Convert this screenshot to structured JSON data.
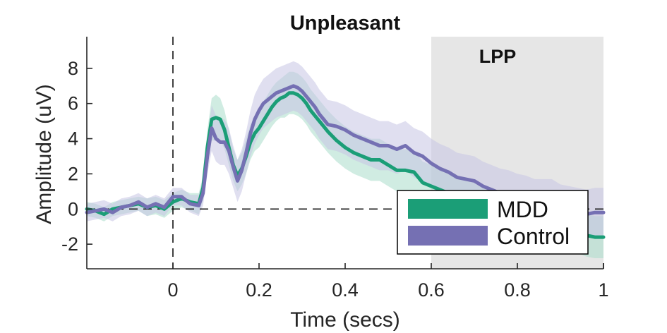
{
  "chart_data": {
    "type": "line",
    "title": "Unpleasant",
    "xlabel": "Time (secs)",
    "ylabel": "Amplitude (uV)",
    "xlim": [
      -0.2,
      1.0
    ],
    "ylim": [
      -3.4,
      9.8
    ],
    "xticks": [
      0,
      0.2,
      0.4,
      0.6,
      0.8,
      1
    ],
    "xtick_labels": [
      "0",
      "0.2",
      "0.4",
      "0.6",
      "0.8",
      "1"
    ],
    "yticks": [
      -2,
      0,
      2,
      4,
      6,
      8
    ],
    "ytick_labels": [
      "-2",
      "0",
      "2",
      "4",
      "6",
      "8"
    ],
    "grid": false,
    "legend_position": "bottom-right",
    "reference_lines": {
      "vertical_x": 0,
      "horizontal_y": 0,
      "style": "dashed"
    },
    "shaded_region": {
      "label": "LPP",
      "x_start": 0.6,
      "x_end": 1.0,
      "color": "#e6e6e6"
    },
    "x": [
      -0.2,
      -0.18,
      -0.16,
      -0.14,
      -0.12,
      -0.1,
      -0.08,
      -0.06,
      -0.04,
      -0.02,
      0.0,
      0.02,
      0.04,
      0.06,
      0.07,
      0.08,
      0.09,
      0.1,
      0.11,
      0.12,
      0.13,
      0.14,
      0.15,
      0.16,
      0.17,
      0.18,
      0.19,
      0.2,
      0.21,
      0.22,
      0.23,
      0.24,
      0.25,
      0.26,
      0.27,
      0.28,
      0.29,
      0.3,
      0.31,
      0.32,
      0.33,
      0.34,
      0.35,
      0.36,
      0.38,
      0.4,
      0.42,
      0.44,
      0.46,
      0.48,
      0.5,
      0.52,
      0.54,
      0.56,
      0.58,
      0.6,
      0.62,
      0.64,
      0.66,
      0.68,
      0.7,
      0.72,
      0.74,
      0.76,
      0.78,
      0.8,
      0.82,
      0.84,
      0.86,
      0.88,
      0.9,
      0.92,
      0.94,
      0.96,
      0.98,
      1.0
    ],
    "series": [
      {
        "name": "MDD",
        "color": "#1b9e77",
        "values": [
          0.0,
          -0.1,
          -0.3,
          0.0,
          0.1,
          0.2,
          0.3,
          0.1,
          0.2,
          0.0,
          0.4,
          0.6,
          0.4,
          0.3,
          1.2,
          3.5,
          5.1,
          5.2,
          5.1,
          4.5,
          3.5,
          2.5,
          1.9,
          2.3,
          3.0,
          3.8,
          4.3,
          4.6,
          5.0,
          5.4,
          5.8,
          6.1,
          6.3,
          6.4,
          6.6,
          6.6,
          6.5,
          6.3,
          6.0,
          5.6,
          5.3,
          5.0,
          4.7,
          4.4,
          3.9,
          3.5,
          3.2,
          3.0,
          2.8,
          2.8,
          2.5,
          2.2,
          2.2,
          2.1,
          1.5,
          1.3,
          1.1,
          0.9,
          0.7,
          0.5,
          0.3,
          0.1,
          -0.1,
          -0.3,
          -0.5,
          -0.4,
          -0.6,
          -0.5,
          -0.7,
          -0.8,
          -1.0,
          -1.2,
          -1.3,
          -1.5,
          -1.6,
          -1.6
        ],
        "ci_upper": [
          0.4,
          0.3,
          0.1,
          0.4,
          0.5,
          0.6,
          0.7,
          0.6,
          0.7,
          0.5,
          0.9,
          1.1,
          0.9,
          0.9,
          1.9,
          4.5,
          6.3,
          6.5,
          6.3,
          5.6,
          4.5,
          3.4,
          2.8,
          3.2,
          4.0,
          4.8,
          5.3,
          5.7,
          6.1,
          6.5,
          6.9,
          7.2,
          7.4,
          7.6,
          7.8,
          7.8,
          7.7,
          7.5,
          7.2,
          6.8,
          6.5,
          6.2,
          5.9,
          5.6,
          5.1,
          4.7,
          4.4,
          4.2,
          4.0,
          4.0,
          3.7,
          3.4,
          3.4,
          3.3,
          2.7,
          2.5,
          2.3,
          2.1,
          1.9,
          1.7,
          1.5,
          1.3,
          1.1,
          0.9,
          0.7,
          0.8,
          0.6,
          0.7,
          0.5,
          0.4,
          0.2,
          0.0,
          -0.1,
          -0.3,
          -0.4,
          -0.4
        ],
        "ci_lower": [
          -0.4,
          -0.5,
          -0.7,
          -0.4,
          -0.3,
          -0.2,
          -0.1,
          -0.4,
          -0.3,
          -0.5,
          -0.1,
          0.1,
          -0.1,
          -0.3,
          0.5,
          2.5,
          3.9,
          3.9,
          3.9,
          3.4,
          2.5,
          1.6,
          1.0,
          1.4,
          2.0,
          2.8,
          3.3,
          3.5,
          3.9,
          4.3,
          4.7,
          5.0,
          5.2,
          5.2,
          5.4,
          5.4,
          5.3,
          5.1,
          4.8,
          4.4,
          4.1,
          3.8,
          3.5,
          3.2,
          2.7,
          2.3,
          2.0,
          1.8,
          1.6,
          1.6,
          1.3,
          1.0,
          1.0,
          0.9,
          0.3,
          0.1,
          -0.1,
          -0.3,
          -0.5,
          -0.7,
          -0.9,
          -1.1,
          -1.3,
          -1.5,
          -1.7,
          -1.6,
          -1.8,
          -1.7,
          -1.9,
          -2.0,
          -2.2,
          -2.4,
          -2.5,
          -2.7,
          -2.8,
          -2.8
        ]
      },
      {
        "name": "Control",
        "color": "#7570b3",
        "values": [
          -0.2,
          -0.1,
          0.0,
          -0.2,
          0.1,
          0.2,
          0.4,
          0.1,
          0.3,
          0.1,
          0.7,
          0.7,
          0.3,
          0.2,
          0.9,
          3.0,
          4.6,
          4.0,
          3.8,
          3.8,
          3.3,
          2.4,
          1.6,
          2.2,
          3.2,
          4.3,
          5.1,
          5.6,
          6.0,
          6.2,
          6.4,
          6.6,
          6.7,
          6.8,
          6.9,
          7.0,
          6.9,
          6.7,
          6.4,
          6.1,
          5.8,
          5.4,
          5.1,
          4.8,
          4.7,
          4.5,
          4.2,
          4.0,
          3.8,
          3.6,
          3.6,
          3.4,
          3.6,
          3.2,
          3.0,
          2.6,
          2.3,
          2.1,
          1.8,
          1.7,
          1.6,
          1.3,
          1.1,
          0.9,
          0.8,
          0.6,
          0.5,
          0.3,
          0.3,
          0.3,
          0.0,
          -0.1,
          -0.2,
          -0.3,
          -0.2,
          -0.2
        ],
        "ci_upper": [
          0.3,
          0.4,
          0.5,
          0.3,
          0.6,
          0.7,
          0.9,
          0.6,
          0.8,
          0.6,
          1.2,
          1.2,
          0.8,
          0.8,
          1.6,
          4.0,
          5.9,
          5.3,
          5.1,
          5.1,
          4.6,
          3.6,
          2.8,
          3.4,
          4.4,
          5.6,
          6.5,
          7.0,
          7.4,
          7.6,
          7.8,
          8.0,
          8.1,
          8.2,
          8.3,
          8.4,
          8.3,
          8.1,
          7.8,
          7.5,
          7.2,
          6.8,
          6.5,
          6.2,
          6.1,
          5.9,
          5.6,
          5.4,
          5.2,
          5.0,
          5.0,
          4.8,
          5.0,
          4.6,
          4.4,
          4.0,
          3.7,
          3.5,
          3.2,
          3.1,
          3.0,
          2.7,
          2.5,
          2.3,
          2.2,
          2.0,
          1.9,
          1.7,
          1.7,
          1.7,
          1.4,
          1.3,
          1.2,
          1.1,
          1.2,
          1.2
        ],
        "ci_lower": [
          -0.7,
          -0.6,
          -0.5,
          -0.7,
          -0.4,
          -0.3,
          -0.1,
          -0.4,
          -0.2,
          -0.4,
          0.2,
          0.2,
          -0.2,
          -0.4,
          0.2,
          2.0,
          3.3,
          2.7,
          2.5,
          2.5,
          2.0,
          1.2,
          0.4,
          1.0,
          2.0,
          3.0,
          3.7,
          4.2,
          4.6,
          4.8,
          5.0,
          5.2,
          5.3,
          5.4,
          5.5,
          5.6,
          5.5,
          5.3,
          5.0,
          4.7,
          4.4,
          4.0,
          3.7,
          3.4,
          3.3,
          3.1,
          2.8,
          2.6,
          2.4,
          2.2,
          2.2,
          2.0,
          2.2,
          1.8,
          1.6,
          1.2,
          0.9,
          0.7,
          0.4,
          0.3,
          0.2,
          -0.1,
          -0.3,
          -0.5,
          -0.6,
          -0.8,
          -0.9,
          -1.1,
          -1.1,
          -1.1,
          -1.4,
          -1.5,
          -1.6,
          -1.7,
          -1.6,
          -1.6
        ]
      }
    ]
  }
}
